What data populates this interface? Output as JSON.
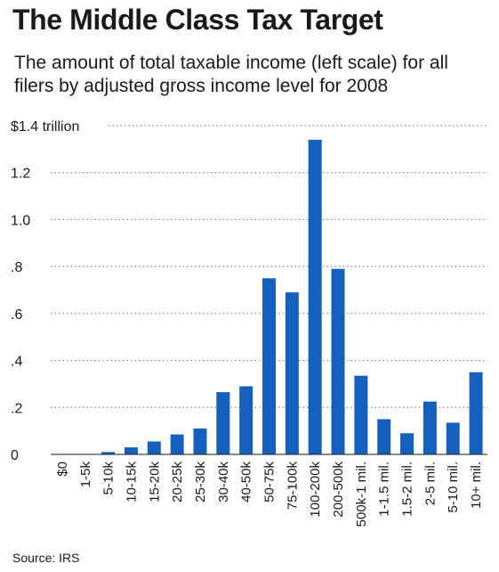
{
  "chart_data": {
    "type": "bar",
    "title": "The Middle Class Tax Target",
    "subtitle": "The amount of total taxable income (left scale) for all filers by adjusted gross income level for 2008",
    "source": "Source: IRS",
    "categories": [
      "$0",
      "1-5k",
      "5-10k",
      "10-15k",
      "15-20k",
      "20-25k",
      "25-30k",
      "30-40k",
      "40-50k",
      "50-75k",
      "75-100k",
      "100-200k",
      "200-500k",
      "500k-1 mil.",
      "1-1.5 mil.",
      "1.5-2 mil.",
      "2-5 mil.",
      "5-10 mil.",
      "10+ mil."
    ],
    "values": [
      0.0,
      0.002,
      0.01,
      0.03,
      0.055,
      0.085,
      0.11,
      0.265,
      0.29,
      0.75,
      0.69,
      1.34,
      0.79,
      0.335,
      0.15,
      0.09,
      0.225,
      0.135,
      0.35
    ],
    "yticks": [
      {
        "value": 1.4,
        "label": "$1.4 trillion"
      },
      {
        "value": 1.2,
        "label": "1.2"
      },
      {
        "value": 1.0,
        "label": "1.0"
      },
      {
        "value": 0.8,
        "label": ".8"
      },
      {
        "value": 0.6,
        "label": ".6"
      },
      {
        "value": 0.4,
        "label": ".4"
      },
      {
        "value": 0.2,
        "label": ".2"
      },
      {
        "value": 0.0,
        "label": "0"
      }
    ],
    "ylim": [
      0,
      1.4
    ],
    "grid": "dotted-horizontal",
    "bar_color": "#1560bd",
    "grid_color": "#8c8c8c"
  }
}
